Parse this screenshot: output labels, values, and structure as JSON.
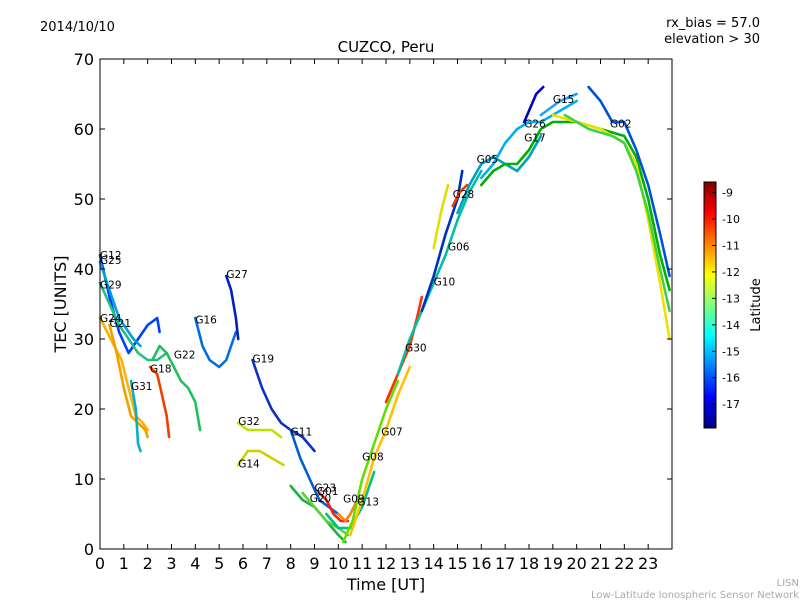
{
  "header": {
    "date": "2014/10/10",
    "bias": "rx_bias = 57.0",
    "elevation": "elevation > 30"
  },
  "footer": {
    "line1": "LISN",
    "line2": "Low-Latitude Ionospheric Sensor Network"
  },
  "colorbar": {
    "label": "Latitude",
    "range": [
      -17.9,
      -8.6
    ],
    "ticks": [
      "-9",
      "-10",
      "-11",
      "-12",
      "-13",
      "-14",
      "-15",
      "-16",
      "-17"
    ],
    "tick_values": [
      -9,
      -10,
      -11,
      -12,
      -13,
      -14,
      -15,
      -16,
      -17
    ],
    "colormap": [
      "#00007f",
      "#0000ff",
      "#007fff",
      "#00ffff",
      "#7fff7f",
      "#ffff00",
      "#ff7f00",
      "#ff0000",
      "#7f0000"
    ]
  },
  "chart_data": {
    "type": "line",
    "title": "CUZCO, Peru",
    "xlabel": "Time [UT]",
    "ylabel": "TEC [UNITS]",
    "xlim": [
      0,
      24
    ],
    "ylim": [
      0,
      70
    ],
    "xticks": [
      "0",
      "1",
      "2",
      "3",
      "4",
      "5",
      "6",
      "7",
      "8",
      "9",
      "10",
      "11",
      "12",
      "13",
      "14",
      "15",
      "16",
      "17",
      "18",
      "19",
      "20",
      "21",
      "22",
      "23"
    ],
    "yticks": [
      "0",
      "10",
      "20",
      "30",
      "40",
      "50",
      "60",
      "70"
    ],
    "grid": false,
    "series": [
      {
        "name": "G12",
        "label_at": [
          0.0,
          42.0
        ],
        "color": "#0040ff",
        "points": [
          [
            0.0,
            42
          ],
          [
            0.4,
            36
          ],
          [
            0.8,
            31
          ],
          [
            1.2,
            28
          ],
          [
            1.6,
            30
          ],
          [
            2.0,
            32
          ],
          [
            2.4,
            33
          ],
          [
            2.5,
            31
          ]
        ]
      },
      {
        "name": "G25",
        "label_at": [
          0.0,
          41.3
        ],
        "color": "#00a0e0",
        "points": [
          [
            0.0,
            41
          ],
          [
            0.4,
            37
          ],
          [
            0.8,
            33
          ],
          [
            1.2,
            31
          ],
          [
            1.4,
            30
          ],
          [
            1.7,
            29
          ]
        ]
      },
      {
        "name": "G29",
        "label_at": [
          0.0,
          37.8
        ],
        "color": "#20c080",
        "points": [
          [
            0.0,
            38
          ],
          [
            0.4,
            35
          ],
          [
            0.8,
            32
          ],
          [
            1.2,
            30
          ],
          [
            1.6,
            28
          ],
          [
            2.0,
            27
          ],
          [
            2.4,
            27
          ],
          [
            2.8,
            28
          ]
        ]
      },
      {
        "name": "G24",
        "label_at": [
          0.0,
          33.0
        ],
        "color": "#ffb000",
        "points": [
          [
            0.0,
            33
          ],
          [
            0.3,
            31
          ],
          [
            0.6,
            29
          ],
          [
            0.9,
            27
          ],
          [
            1.2,
            23
          ],
          [
            1.5,
            19
          ],
          [
            1.8,
            18
          ],
          [
            2.0,
            17
          ]
        ]
      },
      {
        "name": "G21",
        "label_at": [
          0.4,
          32.3
        ],
        "color": "#f0a000",
        "points": [
          [
            0.4,
            32
          ],
          [
            0.7,
            28
          ],
          [
            1.0,
            23
          ],
          [
            1.3,
            19
          ],
          [
            1.6,
            18
          ],
          [
            1.9,
            17
          ],
          [
            2.0,
            16
          ]
        ]
      },
      {
        "name": "G31",
        "label_at": [
          1.3,
          23.3
        ],
        "color": "#00b0d0",
        "points": [
          [
            1.3,
            24
          ],
          [
            1.5,
            20
          ],
          [
            1.6,
            15
          ],
          [
            1.7,
            14
          ]
        ]
      },
      {
        "name": "G18",
        "label_at": [
          2.1,
          25.8
        ],
        "color": "#f04000",
        "points": [
          [
            2.1,
            26
          ],
          [
            2.4,
            25
          ],
          [
            2.6,
            22
          ],
          [
            2.8,
            19
          ],
          [
            2.9,
            16
          ]
        ]
      },
      {
        "name": "G22",
        "label_at": [
          3.1,
          27.8
        ],
        "color": "#20c060",
        "points": [
          [
            2.2,
            27
          ],
          [
            2.5,
            29
          ],
          [
            2.8,
            28
          ],
          [
            3.1,
            26
          ],
          [
            3.4,
            24
          ],
          [
            3.7,
            23
          ],
          [
            4.0,
            21
          ],
          [
            4.2,
            17
          ]
        ]
      },
      {
        "name": "G16",
        "label_at": [
          4.0,
          32.8
        ],
        "color": "#0070e0",
        "points": [
          [
            4.0,
            33
          ],
          [
            4.3,
            29
          ],
          [
            4.6,
            27
          ],
          [
            5.0,
            26
          ],
          [
            5.3,
            27
          ],
          [
            5.6,
            30
          ],
          [
            5.7,
            31
          ]
        ]
      },
      {
        "name": "G27",
        "label_at": [
          5.3,
          39.3
        ],
        "color": "#0020c0",
        "points": [
          [
            5.3,
            39
          ],
          [
            5.5,
            37
          ],
          [
            5.7,
            33
          ],
          [
            5.8,
            30
          ]
        ]
      },
      {
        "name": "G19",
        "label_at": [
          6.4,
          27.2
        ],
        "color": "#1030c0",
        "points": [
          [
            6.4,
            27
          ],
          [
            6.8,
            23
          ],
          [
            7.2,
            20
          ],
          [
            7.6,
            18
          ],
          [
            8.0,
            17
          ],
          [
            8.5,
            16
          ],
          [
            9.0,
            14
          ]
        ]
      },
      {
        "name": "G32",
        "label_at": [
          5.8,
          18.3
        ],
        "color": "#c0e000",
        "points": [
          [
            5.8,
            18
          ],
          [
            6.2,
            17
          ],
          [
            6.7,
            17
          ],
          [
            7.2,
            17
          ],
          [
            7.6,
            16
          ]
        ]
      },
      {
        "name": "G14",
        "label_at": [
          5.8,
          12.2
        ],
        "color": "#d0d000",
        "points": [
          [
            5.8,
            12
          ],
          [
            6.2,
            14
          ],
          [
            6.7,
            14
          ],
          [
            7.2,
            13
          ],
          [
            7.7,
            12
          ]
        ]
      },
      {
        "name": "G11",
        "label_at": [
          8.0,
          16.8
        ],
        "color": "#0060d0",
        "points": [
          [
            8.0,
            17
          ],
          [
            8.4,
            13
          ],
          [
            8.8,
            10
          ],
          [
            9.2,
            7
          ],
          [
            9.6,
            6
          ],
          [
            10.0,
            5
          ]
        ]
      },
      {
        "name": "G23",
        "label_at": [
          9.0,
          8.8
        ],
        "color": "#20b040",
        "points": [
          [
            8.0,
            9
          ],
          [
            8.5,
            7
          ],
          [
            9.0,
            6
          ],
          [
            9.5,
            4
          ],
          [
            10.0,
            2
          ],
          [
            10.3,
            1
          ]
        ]
      },
      {
        "name": "G01",
        "label_at": [
          9.1,
          8.3
        ],
        "color": "#60d040",
        "points": [
          [
            8.5,
            8
          ],
          [
            9.0,
            6
          ],
          [
            9.5,
            4
          ],
          [
            10.0,
            3
          ],
          [
            10.4,
            2
          ]
        ]
      },
      {
        "name": "G20",
        "label_at": [
          8.8,
          7.3
        ],
        "color": "#ff2000",
        "points": [
          [
            9.2,
            8
          ],
          [
            9.5,
            7
          ],
          [
            9.8,
            5
          ],
          [
            10.1,
            4
          ],
          [
            10.4,
            4
          ]
        ]
      },
      {
        "name": "G09",
        "label_at": [
          10.2,
          7.2
        ],
        "color": "#ff8000",
        "points": [
          [
            10.0,
            5
          ],
          [
            10.3,
            4
          ],
          [
            10.5,
            5
          ],
          [
            10.8,
            7
          ]
        ]
      },
      {
        "name": "G13",
        "label_at": [
          10.8,
          6.8
        ],
        "color": "#00c080",
        "points": [
          [
            9.5,
            5
          ],
          [
            10.0,
            3
          ],
          [
            10.5,
            3
          ],
          [
            11.0,
            6
          ],
          [
            11.5,
            11
          ]
        ]
      },
      {
        "name": "G08",
        "label_at": [
          11.0,
          13.2
        ],
        "color": "#60e000",
        "points": [
          [
            10.2,
            1
          ],
          [
            10.6,
            4
          ],
          [
            11.0,
            10
          ],
          [
            11.5,
            15
          ],
          [
            12.0,
            20
          ],
          [
            12.5,
            24
          ]
        ]
      },
      {
        "name": "G07",
        "label_at": [
          11.8,
          16.8
        ],
        "color": "#ffc000",
        "points": [
          [
            10.5,
            2
          ],
          [
            11.0,
            7
          ],
          [
            11.5,
            13
          ],
          [
            12.0,
            17
          ],
          [
            12.5,
            22
          ],
          [
            13.0,
            26
          ]
        ]
      },
      {
        "name": "G30",
        "label_at": [
          12.8,
          28.8
        ],
        "color": "#ff3000",
        "points": [
          [
            12.0,
            21
          ],
          [
            12.5,
            25
          ],
          [
            13.0,
            29
          ],
          [
            13.3,
            33
          ],
          [
            13.5,
            36
          ]
        ]
      },
      {
        "name": "G10",
        "label_at": [
          14.0,
          38.2
        ],
        "color": "#00c0a0",
        "points": [
          [
            12.5,
            25
          ],
          [
            13.0,
            30
          ],
          [
            13.5,
            34
          ],
          [
            14.0,
            38
          ],
          [
            14.5,
            42
          ],
          [
            15.0,
            47
          ],
          [
            15.5,
            51
          ],
          [
            16.0,
            54
          ]
        ]
      },
      {
        "name": "G06",
        "label_at": [
          14.6,
          43.2
        ],
        "color": "#0030c0",
        "points": [
          [
            13.5,
            34
          ],
          [
            14.0,
            39
          ],
          [
            14.5,
            45
          ],
          [
            15.0,
            50
          ],
          [
            15.2,
            54
          ]
        ]
      },
      {
        "name": "G28",
        "label_at": [
          14.8,
          50.7
        ],
        "color": "#e04000",
        "points": [
          [
            14.8,
            49
          ],
          [
            15.1,
            51
          ],
          [
            15.4,
            52
          ]
        ]
      },
      {
        "name": "G05",
        "label_at": [
          15.8,
          55.7
        ],
        "color": "#00a0c0",
        "points": [
          [
            15.0,
            48
          ],
          [
            15.5,
            52
          ],
          [
            16.0,
            55
          ],
          [
            16.5,
            56
          ],
          [
            17.0,
            55
          ],
          [
            17.5,
            54
          ],
          [
            18.0,
            56
          ],
          [
            18.5,
            59
          ]
        ]
      },
      {
        "name": "G26",
        "label_at": [
          17.8,
          60.8
        ],
        "color": "#00b0f0",
        "points": [
          [
            16.0,
            53
          ],
          [
            16.5,
            55
          ],
          [
            17.0,
            58
          ],
          [
            17.5,
            60
          ],
          [
            18.0,
            61
          ],
          [
            18.5,
            61
          ],
          [
            19.0,
            62
          ],
          [
            19.5,
            63
          ],
          [
            20.0,
            64
          ]
        ]
      },
      {
        "name": "G17",
        "label_at": [
          17.8,
          58.8
        ],
        "color": "#00b000",
        "points": [
          [
            16.0,
            52
          ],
          [
            16.5,
            54
          ],
          [
            17.0,
            55
          ],
          [
            17.5,
            55
          ],
          [
            18.0,
            57
          ],
          [
            18.5,
            60
          ],
          [
            19.0,
            61
          ],
          [
            20.0,
            61
          ],
          [
            21.0,
            60
          ],
          [
            22.0,
            59
          ],
          [
            22.5,
            56
          ],
          [
            23.0,
            50
          ],
          [
            23.5,
            42
          ],
          [
            23.9,
            37
          ]
        ]
      },
      {
        "name": "G15",
        "label_at": [
          19.0,
          64.3
        ],
        "color": "#0000c0",
        "points": [
          [
            17.8,
            61
          ],
          [
            18.3,
            65
          ],
          [
            18.6,
            66
          ]
        ]
      },
      {
        "name": "G02",
        "label_at": [
          21.4,
          60.8
        ],
        "color": "#0050e0",
        "points": [
          [
            20.5,
            66
          ],
          [
            21.0,
            64
          ],
          [
            21.5,
            61
          ],
          [
            22.0,
            61
          ],
          [
            22.5,
            57
          ],
          [
            23.0,
            52
          ],
          [
            23.5,
            45
          ],
          [
            23.9,
            39
          ]
        ]
      },
      {
        "name": "",
        "label_at": null,
        "color": "#e0e000",
        "points": [
          [
            14.0,
            43
          ],
          [
            14.3,
            48
          ],
          [
            14.6,
            52
          ]
        ]
      },
      {
        "name": "",
        "label_at": null,
        "color": "#f0e000",
        "points": [
          [
            19.0,
            62
          ],
          [
            20.0,
            61
          ],
          [
            21.0,
            60
          ],
          [
            22.0,
            58
          ],
          [
            22.5,
            55
          ],
          [
            23.0,
            47
          ],
          [
            23.5,
            38
          ],
          [
            23.9,
            30
          ]
        ]
      },
      {
        "name": "",
        "label_at": null,
        "color": "#40d040",
        "points": [
          [
            19.5,
            62
          ],
          [
            20.5,
            60
          ],
          [
            21.5,
            59
          ],
          [
            22.0,
            58
          ],
          [
            22.5,
            54
          ],
          [
            23.0,
            48
          ],
          [
            23.5,
            40
          ],
          [
            23.9,
            34
          ]
        ]
      },
      {
        "name": "",
        "label_at": null,
        "color": "#20a0ff",
        "points": [
          [
            18.5,
            62
          ],
          [
            19.3,
            64
          ],
          [
            20.0,
            65
          ]
        ]
      }
    ]
  }
}
